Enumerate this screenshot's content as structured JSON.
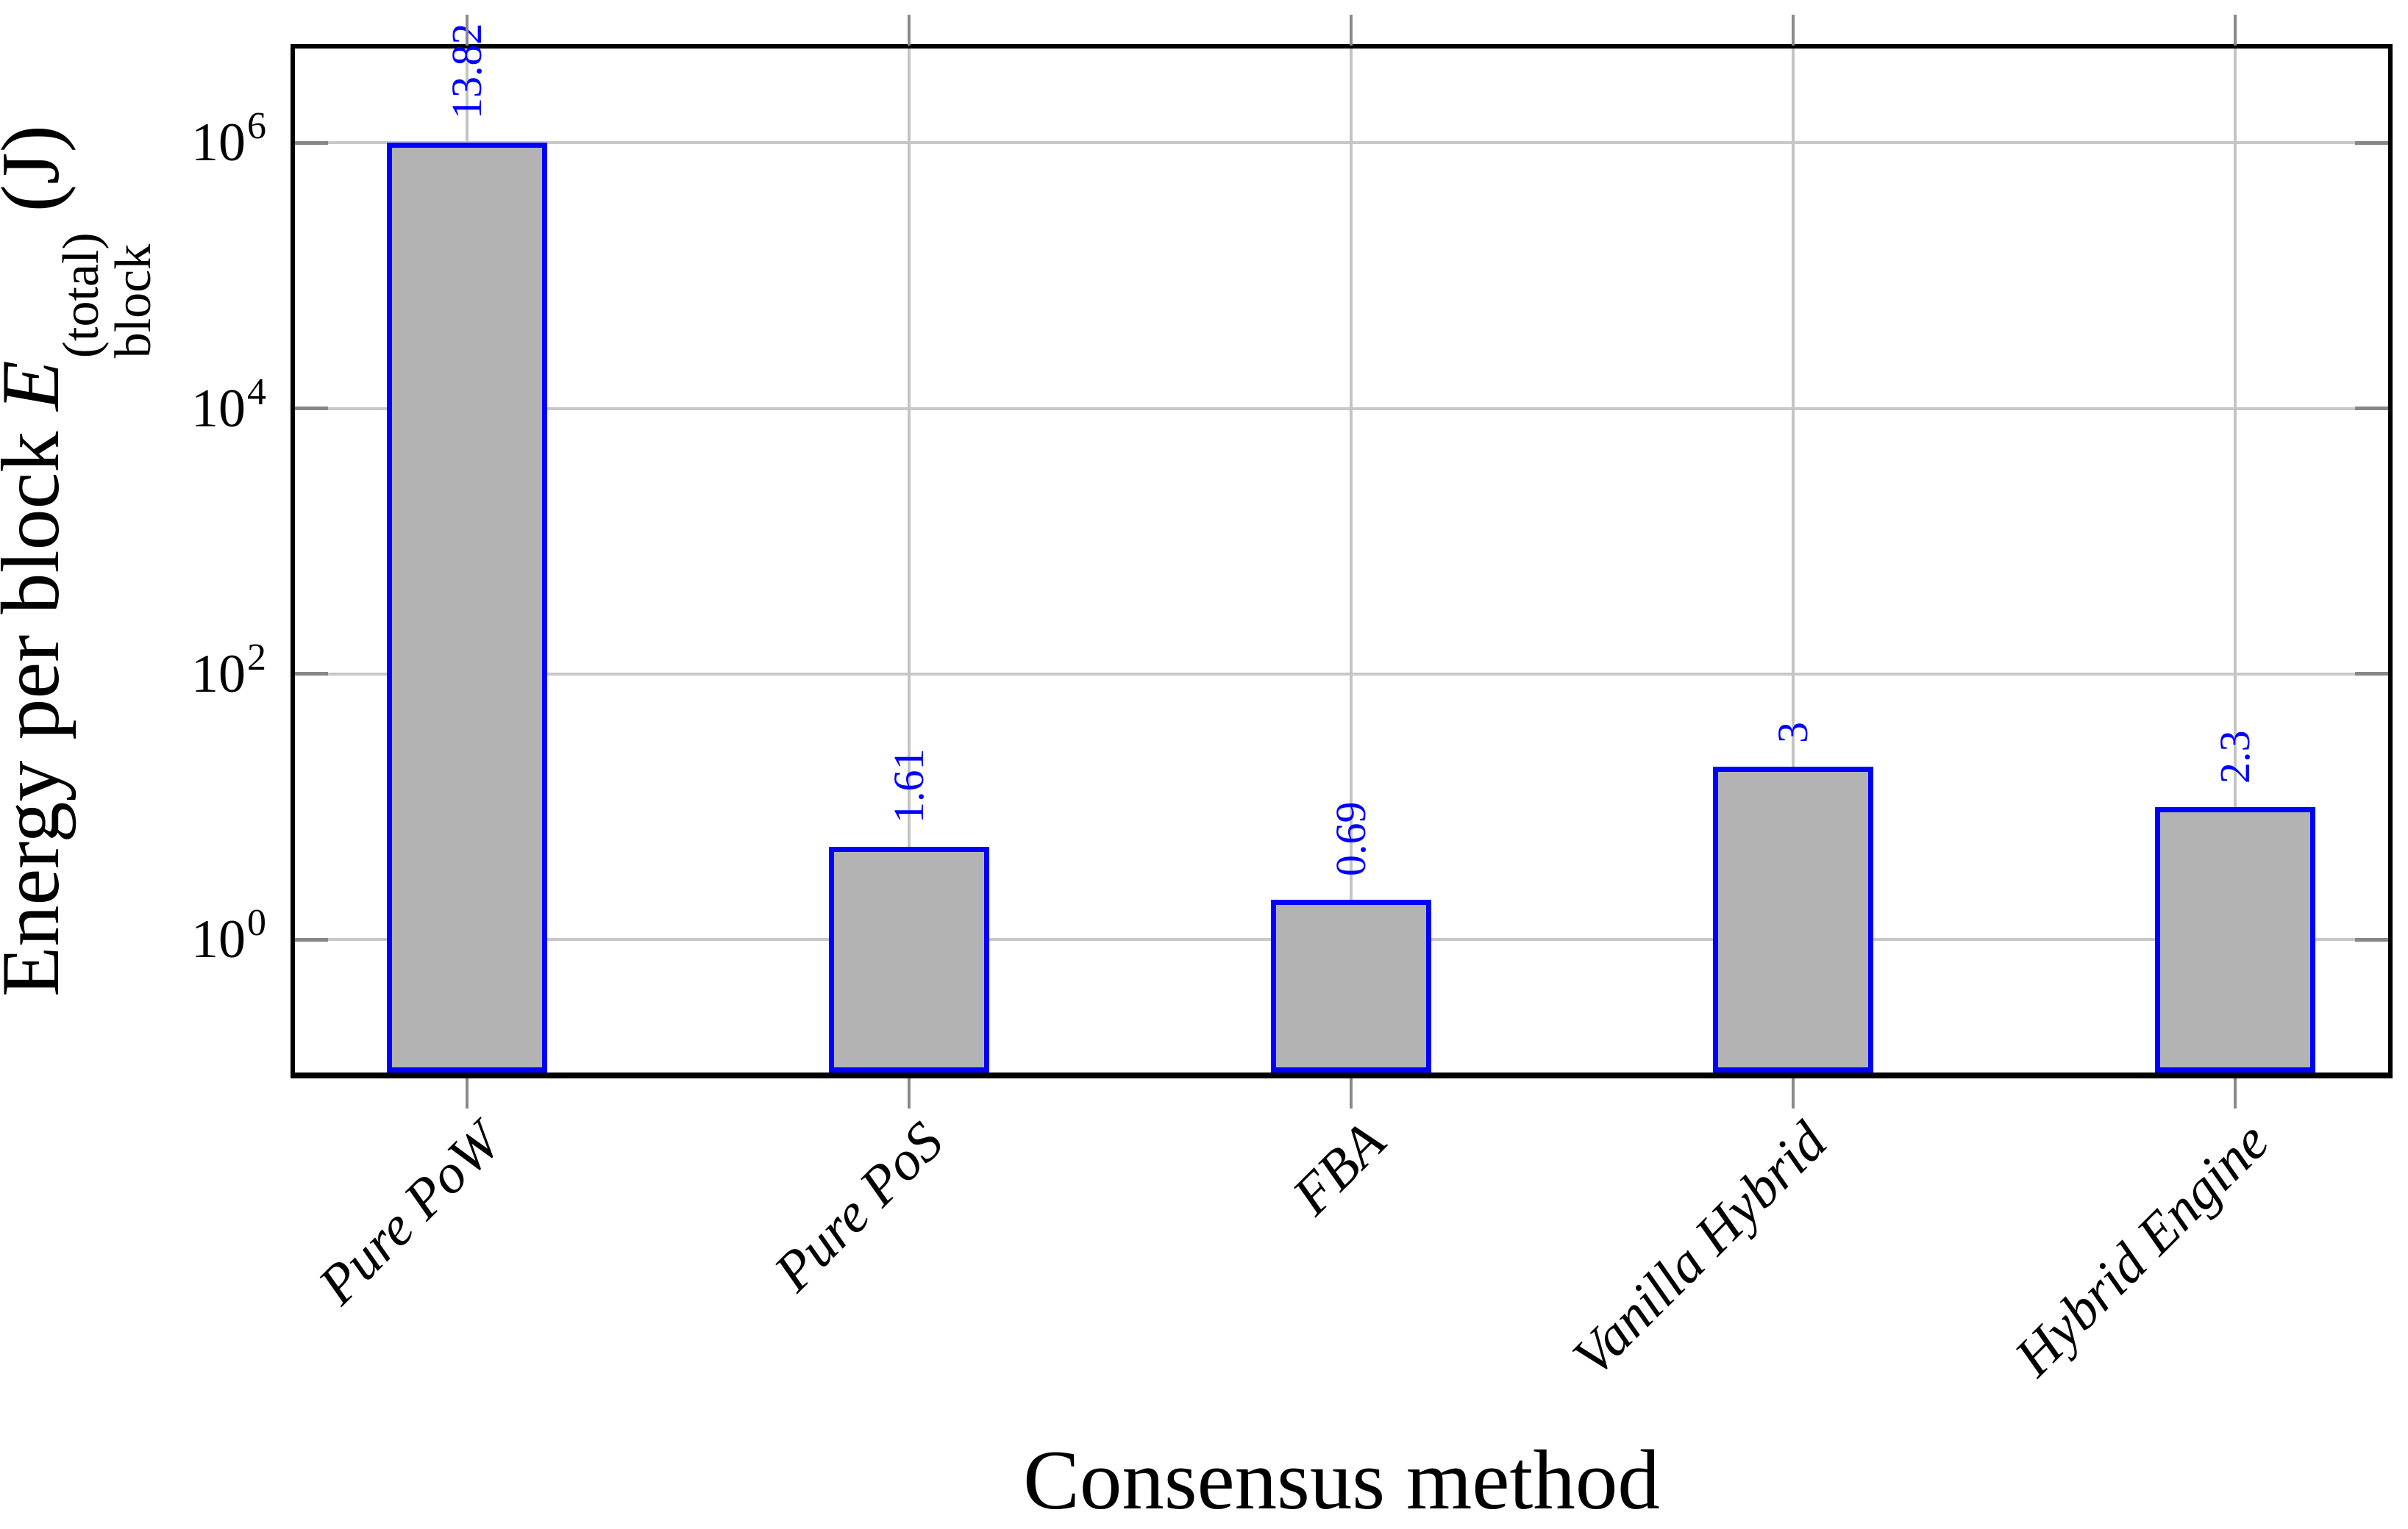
{
  "chart_data": {
    "type": "bar",
    "yscale": "log10",
    "title": "",
    "xlabel": "Consensus method",
    "ylabel": {
      "plain": "Energy per block E_block^(total) (J)",
      "prefix": "Energy per block ",
      "symbol": "E",
      "superscript": "(total)",
      "subscript": "block",
      "suffix": " (J)"
    },
    "categories": [
      "Pure PoW",
      "Pure PoS",
      "FBA",
      "Vanilla Hybrid",
      "Hybrid Engine"
    ],
    "values_J": [
      1000000,
      5,
      2,
      20,
      10
    ],
    "bar_value_labels": [
      "13.82",
      "1.61",
      "0.69",
      "3",
      "2.3"
    ],
    "ytick_labels": [
      {
        "base": "10",
        "exponent": "6"
      },
      {
        "base": "10",
        "exponent": "4"
      },
      {
        "base": "10",
        "exponent": "2"
      },
      {
        "base": "10",
        "exponent": "0"
      }
    ],
    "ytick_exponents": [
      6,
      4,
      2,
      0
    ],
    "ylim": [
      0.1,
      5130000
    ],
    "grid": true,
    "legend_position": "none",
    "colors": {
      "bar_fill": "#b3b3b3",
      "bar_border": "#0000ff",
      "value_label": "#0000ff",
      "grid_line": "#c8c8c8",
      "vertical_grid_line": "#c4c4c4",
      "tick_mark": "#8a8a8a",
      "inner_tick_mark": "#878787",
      "axis_frame": "#000000",
      "text": "#000000",
      "background": "#ffffff"
    }
  }
}
